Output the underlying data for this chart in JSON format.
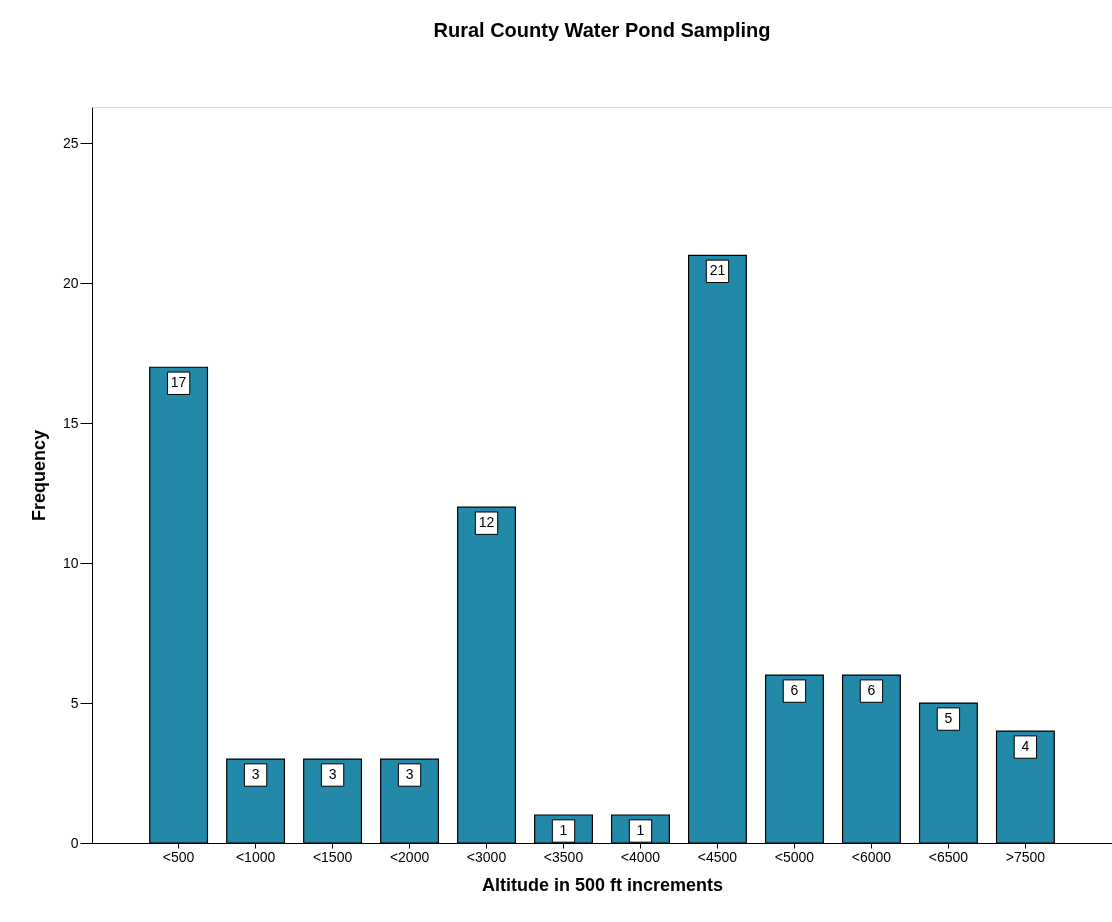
{
  "chart_data": {
    "type": "bar",
    "title": "Rural County Water Pond Sampling",
    "xlabel": "Altitude in 500 ft increments",
    "ylabel": "Frequency",
    "categories": [
      "<500",
      "<1000",
      "<1500",
      "<2000",
      "<3000",
      "<3500",
      "<4000",
      "<4500",
      "<5000",
      "<6000",
      "<6500",
      ">7500"
    ],
    "values": [
      17,
      3,
      3,
      3,
      12,
      1,
      1,
      21,
      6,
      6,
      5,
      4
    ],
    "color": "#2389a8",
    "ylim": [
      0,
      26.3
    ],
    "yticks": [
      0,
      5,
      10,
      15,
      20,
      25
    ],
    "grid": false,
    "data_labels": true
  }
}
